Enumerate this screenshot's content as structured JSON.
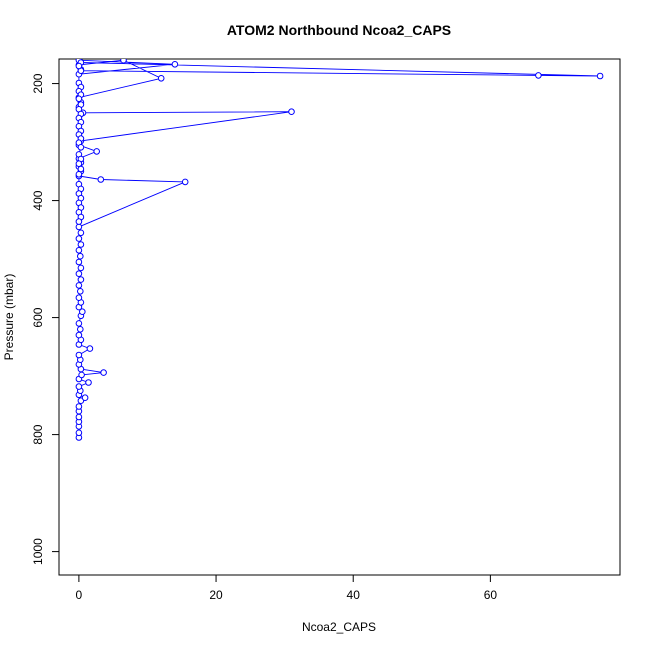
{
  "chart_data": {
    "type": "line",
    "title": "ATOM2 Northbound Ncoa2_CAPS",
    "xlabel": "Ncoa2_CAPS",
    "ylabel": "Pressure (mbar)",
    "xlim": [
      -2.9,
      78.9
    ],
    "ylim": [
      1040,
      158
    ],
    "y_reversed": true,
    "x_ticks": [
      0,
      20,
      40,
      60
    ],
    "y_ticks": [
      200,
      400,
      600,
      800,
      1000
    ],
    "grid": false,
    "line_color": "#0000ff",
    "marker": "open-circle",
    "series": [
      {
        "points": [
          [
            0.0,
            805
          ],
          [
            0.0,
            797
          ],
          [
            0.0,
            786
          ],
          [
            0.0,
            778
          ],
          [
            0.0,
            770
          ],
          [
            0.0,
            760
          ],
          [
            0.0,
            752
          ],
          [
            0.3,
            742
          ],
          [
            0.9,
            737
          ],
          [
            0.0,
            732
          ],
          [
            0.2,
            725
          ],
          [
            0.0,
            718
          ],
          [
            1.4,
            711
          ],
          [
            0.0,
            705
          ],
          [
            0.4,
            698
          ],
          [
            3.6,
            694
          ],
          [
            0.3,
            688
          ],
          [
            0.0,
            680
          ],
          [
            0.2,
            672
          ],
          [
            0.0,
            664
          ],
          [
            1.6,
            653
          ],
          [
            0.0,
            646
          ],
          [
            0.3,
            638
          ],
          [
            0.0,
            630
          ],
          [
            0.2,
            620
          ],
          [
            0.0,
            610
          ],
          [
            0.3,
            597
          ],
          [
            0.5,
            590
          ],
          [
            0.0,
            582
          ],
          [
            0.3,
            574
          ],
          [
            0.0,
            566
          ],
          [
            0.2,
            555
          ],
          [
            0.0,
            545
          ],
          [
            0.3,
            535
          ],
          [
            0.0,
            525
          ],
          [
            0.3,
            515
          ],
          [
            0.0,
            505
          ],
          [
            0.2,
            495
          ],
          [
            0.0,
            485
          ],
          [
            0.3,
            475
          ],
          [
            0.0,
            465
          ],
          [
            0.3,
            455
          ],
          [
            0.0,
            445
          ],
          [
            15.5,
            368
          ],
          [
            3.2,
            364
          ],
          [
            0.0,
            358
          ],
          [
            0.3,
            350
          ],
          [
            0.0,
            342
          ],
          [
            0.3,
            335
          ],
          [
            0.0,
            328
          ],
          [
            2.6,
            316
          ],
          [
            0.0,
            305
          ],
          [
            0.3,
            298
          ],
          [
            31.0,
            248
          ],
          [
            0.6,
            250
          ],
          [
            0.0,
            240
          ],
          [
            0.3,
            232
          ],
          [
            0.0,
            224
          ],
          [
            12.0,
            191
          ],
          [
            6.5,
            160
          ],
          [
            0.0,
            168
          ],
          [
            0.3,
            176
          ],
          [
            0.0,
            184
          ],
          [
            14.0,
            167
          ],
          [
            0.0,
            160
          ],
          [
            0.3,
            164
          ],
          [
            76.0,
            187
          ],
          [
            67.0,
            186
          ],
          [
            0.3,
            178
          ],
          [
            0.0,
            170
          ],
          [
            0.0,
            199
          ],
          [
            0.3,
            206
          ],
          [
            0.0,
            213
          ],
          [
            0.3,
            219
          ],
          [
            0.0,
            226
          ],
          [
            0.3,
            236
          ],
          [
            0.0,
            244
          ],
          [
            0.3,
            252
          ],
          [
            0.0,
            259
          ],
          [
            0.3,
            266
          ],
          [
            0.0,
            273
          ],
          [
            0.3,
            281
          ],
          [
            0.0,
            287
          ],
          [
            0.3,
            294
          ],
          [
            0.0,
            301
          ],
          [
            0.3,
            309
          ],
          [
            0.0,
            321
          ],
          [
            0.3,
            329
          ],
          [
            0.0,
            337
          ],
          [
            0.3,
            346
          ],
          [
            0.0,
            355
          ],
          [
            0.0,
            372
          ],
          [
            0.3,
            380
          ],
          [
            0.0,
            388
          ],
          [
            0.3,
            396
          ],
          [
            0.0,
            404
          ],
          [
            0.3,
            412
          ],
          [
            0.0,
            420
          ],
          [
            0.3,
            428
          ],
          [
            0.0,
            436
          ]
        ]
      }
    ]
  }
}
